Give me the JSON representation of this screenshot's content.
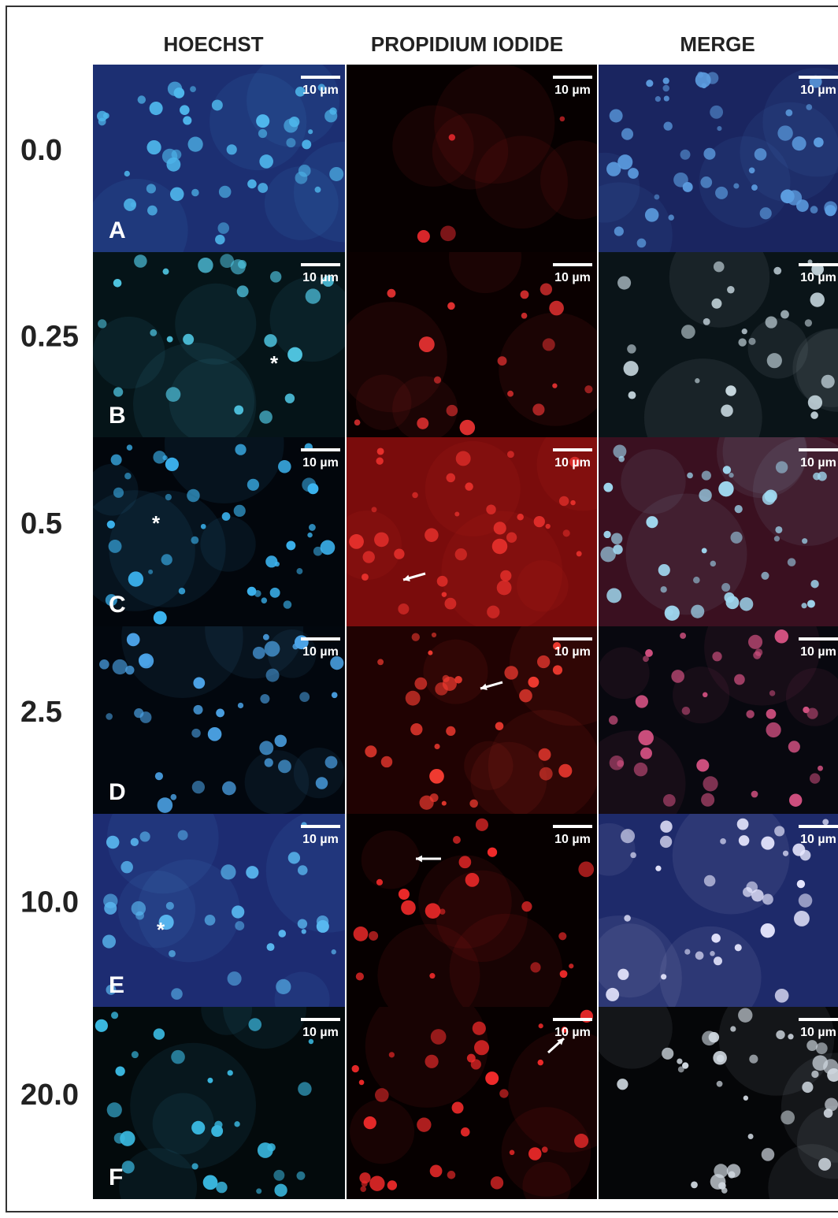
{
  "headers": [
    "HOECHST",
    "PROPIDIUM IODIDE",
    "MERGE"
  ],
  "rows": [
    {
      "label": "0.0",
      "panel": "A",
      "scale_bars": [
        "10 µm",
        "10 µm",
        "10 µm"
      ]
    },
    {
      "label": "0.25",
      "panel": "B",
      "scale_bars": [
        "10 µm",
        "10 µm",
        "10 µm"
      ],
      "asterisk": "*"
    },
    {
      "label": "0.5",
      "panel": "C",
      "scale_bars": [
        "10 µm",
        "10 µm",
        "10 µm"
      ],
      "asterisk": "*"
    },
    {
      "label": "2.5",
      "panel": "D",
      "scale_bars": [
        "10 µm",
        "10 µm",
        "10 µm"
      ]
    },
    {
      "label": "10.0",
      "panel": "E",
      "scale_bars": [
        "10 µm",
        "10 µm",
        "10 µm"
      ],
      "asterisk": "*"
    },
    {
      "label": "20.0",
      "panel": "F",
      "scale_bars": [
        "10 µm",
        "10 µm",
        "10 µm"
      ]
    }
  ]
}
